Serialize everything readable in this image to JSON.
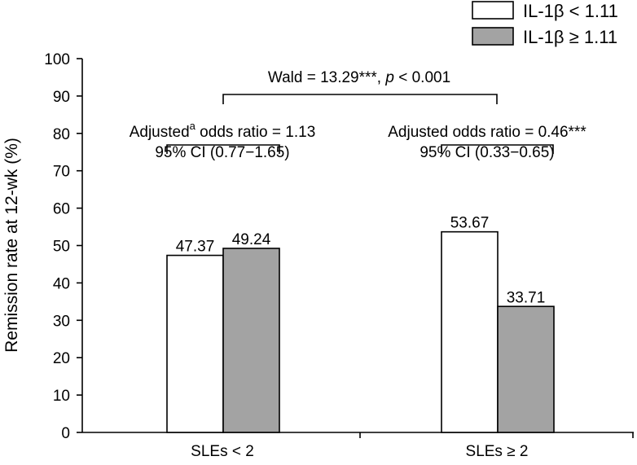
{
  "chart_data": {
    "type": "bar",
    "ylabel": "Remission rate at 12-wk (%)",
    "xlabel": "",
    "ylim": [
      0,
      100
    ],
    "yticks": [
      0,
      10,
      20,
      30,
      40,
      50,
      60,
      70,
      80,
      90,
      100
    ],
    "categories": [
      "SLEs < 2",
      "SLEs ≥ 2"
    ],
    "series": [
      {
        "name": "IL-1β < 1.11",
        "color": "#ffffff",
        "values": [
          47.37,
          53.67
        ],
        "labels": [
          "47.37",
          "53.67"
        ]
      },
      {
        "name": "IL-1β ≥ 1.11",
        "color": "#a3a3a3",
        "values": [
          49.24,
          33.71
        ],
        "labels": [
          "49.24",
          "33.71"
        ]
      }
    ],
    "legend": {
      "position": "top-right"
    },
    "annotations": {
      "overall": {
        "prefix": "Wald = 13.29***, ",
        "p": "p",
        "suffix": " < 0.001"
      },
      "group1": {
        "line1_a": "Adjusted",
        "line1_sup": "a",
        "line1_b": " odds ratio = 1.13",
        "line2": "95% CI (0.77−1.65)"
      },
      "group2": {
        "line1": "Adjusted odds ratio = 0.46***",
        "line2": "95% CI (0.33−0.65)"
      }
    }
  }
}
